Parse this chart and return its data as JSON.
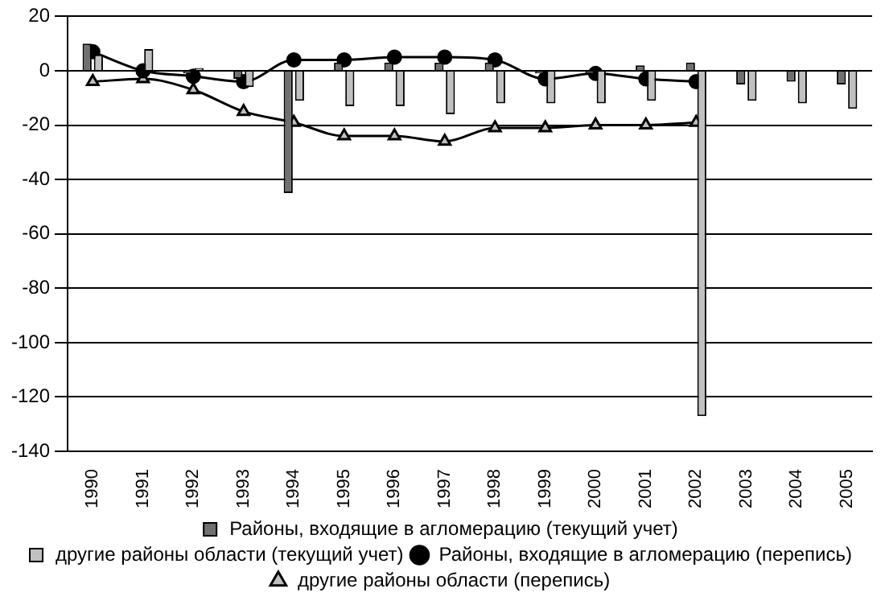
{
  "chart_data": {
    "type": "bar",
    "categories": [
      "1990",
      "1991",
      "1992",
      "1993",
      "1994",
      "1995",
      "1996",
      "1997",
      "1998",
      "1999",
      "2000",
      "2001",
      "2002",
      "2003",
      "2004",
      "2005"
    ],
    "series": [
      {
        "name": "Районы, входящие в агломерацию (текущий учет)",
        "color": "#707070",
        "values": [
          10,
          0,
          -1,
          -3,
          -45,
          3,
          3,
          3,
          3,
          -1,
          -1,
          2,
          3,
          -5,
          -4,
          -5
        ]
      },
      {
        "name": "другие районы области (текущий учет)",
        "color": "#c0c0c0",
        "values": [
          6,
          8,
          1,
          -6,
          -11,
          -13,
          -13,
          -16,
          -12,
          -12,
          -12,
          -11,
          -127,
          -11,
          -12,
          -14
        ]
      },
      {
        "name": "Районы, входящие в агломерацию (перепись)",
        "type": "line",
        "color": "#000000",
        "marker": "circle",
        "values": [
          7,
          0,
          -2,
          -4,
          4,
          4,
          5,
          5,
          4,
          -3,
          -1,
          -3,
          -4,
          null,
          null,
          null
        ]
      },
      {
        "name": "другие районы области (перепись)",
        "type": "line",
        "color": "#000000",
        "marker": "triangle",
        "values": [
          -4,
          -3,
          -7,
          -15,
          -19,
          -24,
          -24,
          -26,
          -21,
          -21,
          -20,
          -20,
          -19,
          null,
          null,
          null
        ]
      }
    ],
    "ylim": [
      -140,
      20
    ],
    "yticks": [
      -140,
      -120,
      -100,
      -80,
      -60,
      -40,
      -20,
      0,
      20
    ],
    "grid": "y",
    "legend": "bottom",
    "line_style": "solid"
  }
}
